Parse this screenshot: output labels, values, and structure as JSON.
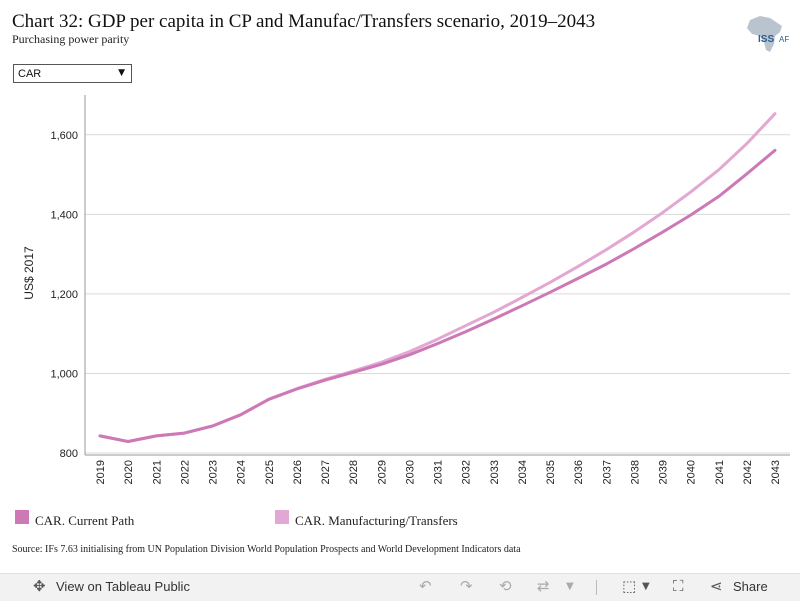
{
  "title": "Chart 32: GDP per capita in CP and Manufac/Transfers scenario, 2019–2043",
  "subtitle": "Purchasing power parity",
  "logo": {
    "text": "ISS",
    "text2": "AF",
    "color": "#2f5f8f"
  },
  "filter": {
    "selected": "CAR",
    "caret": "▼"
  },
  "chart_data": {
    "type": "line",
    "title": "",
    "xlabel": "",
    "ylabel": "US$ 2017",
    "ylim": [
      795,
      1700
    ],
    "yticks": [
      800,
      1000,
      1200,
      1400,
      1600
    ],
    "ytick_labels": [
      "800",
      "1,000",
      "1,200",
      "1,400",
      "1,600"
    ],
    "grid": true,
    "x": [
      2019,
      2020,
      2021,
      2022,
      2023,
      2024,
      2025,
      2026,
      2027,
      2028,
      2029,
      2030,
      2031,
      2032,
      2033,
      2034,
      2035,
      2036,
      2037,
      2038,
      2039,
      2040,
      2041,
      2042,
      2043
    ],
    "series": [
      {
        "name": "CAR. Current Path",
        "color": "#cc79b6",
        "values": [
          843,
          829,
          843,
          850,
          868,
          896,
          935,
          961,
          983,
          1003,
          1023,
          1047,
          1075,
          1105,
          1137,
          1170,
          1204,
          1239,
          1275,
          1314,
          1355,
          1398,
          1445,
          1502,
          1561
        ]
      },
      {
        "name": "CAR. Manufacturing/Transfers",
        "color": "#e3a7d3",
        "values": [
          843,
          829,
          843,
          850,
          868,
          896,
          935,
          962,
          985,
          1006,
          1028,
          1055,
          1086,
          1120,
          1154,
          1191,
          1229,
          1269,
          1311,
          1356,
          1404,
          1456,
          1512,
          1578,
          1653
        ]
      }
    ]
  },
  "source": "Source: IFs 7.63 initialising from UN Population Division World Population Prospects and World Development Indicators data",
  "toolbar": {
    "view_label": "View on Tableau Public",
    "share_label": "Share",
    "icons": [
      "view-icon",
      "undo-icon",
      "redo-icon",
      "revert-icon",
      "refresh-icon",
      "download-icon",
      "fullscreen-icon",
      "share-icon"
    ]
  }
}
